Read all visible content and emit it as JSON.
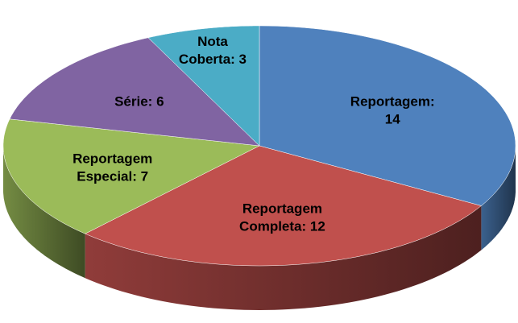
{
  "chart_data": {
    "type": "pie3d",
    "categories": [
      [
        "Reportagem:",
        "14"
      ],
      [
        "Reportagem",
        "Completa: 12"
      ],
      [
        "Reportagem",
        "Especial: 7"
      ],
      [
        "Série: 6"
      ],
      [
        "Nota",
        "Coberta: 3"
      ]
    ],
    "values": [
      14,
      12,
      7,
      6,
      3
    ],
    "colors": [
      "#4f81bd",
      "#c0504d",
      "#9bbb59",
      "#8064a2",
      "#4bacc6"
    ]
  }
}
